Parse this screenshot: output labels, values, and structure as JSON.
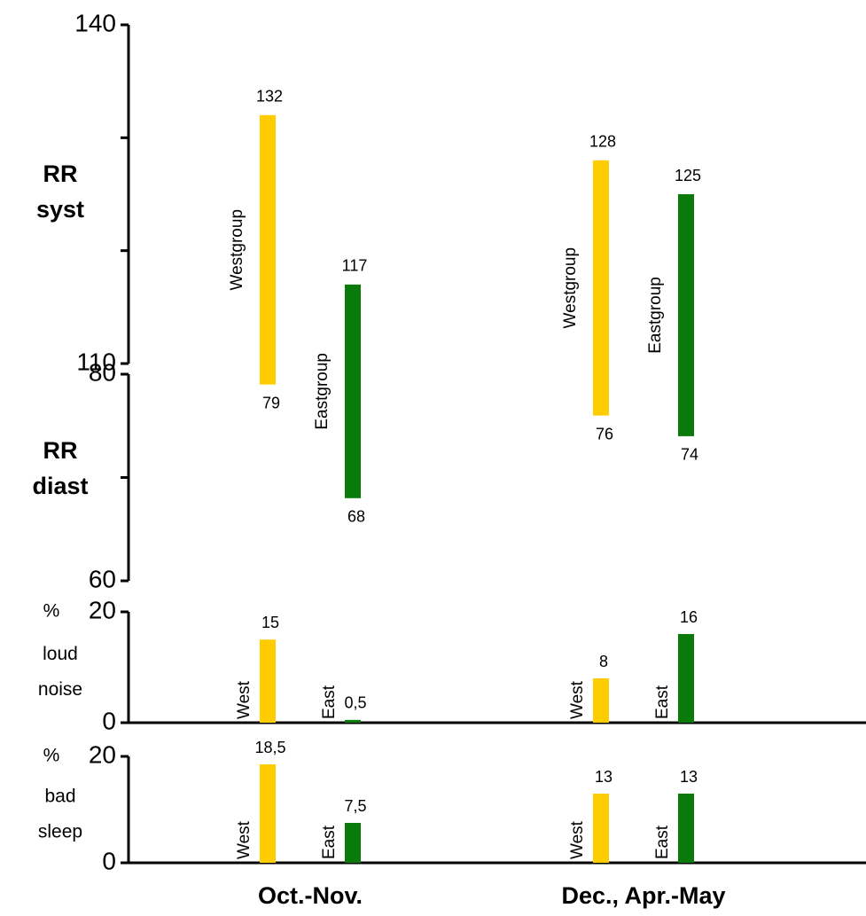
{
  "chart_data": [
    {
      "type": "range",
      "categories": [
        "Oct.-Nov.",
        "Dec., Apr.-May"
      ],
      "ylabel_syst": [
        "RR",
        "syst"
      ],
      "ylim_syst": [
        110,
        140
      ],
      "yticks_syst": [
        110,
        140
      ],
      "yminor_syst": [
        120,
        130
      ],
      "ylabel_diast": [
        "RR",
        "diast"
      ],
      "ylim_diast": [
        60,
        80
      ],
      "yticks_diast": [
        60,
        80
      ],
      "yminor_diast": [
        70
      ],
      "series": [
        {
          "name": "Westgroup",
          "color": "#ffcc00",
          "systolic": [
            132,
            128
          ],
          "diastolic": [
            79,
            76
          ]
        },
        {
          "name": "Eastgroup",
          "color": "#0a7a0a",
          "systolic": [
            117,
            125
          ],
          "diastolic": [
            68,
            74
          ]
        }
      ]
    },
    {
      "type": "bar",
      "ylabel_unit": "%",
      "ylabel": [
        "loud",
        "noise"
      ],
      "ylim": [
        0,
        20
      ],
      "yticks": [
        0,
        20
      ],
      "series": [
        {
          "name": "West",
          "color": "#ffcc00",
          "values": [
            15,
            8
          ]
        },
        {
          "name": "East",
          "color": "#0a7a0a",
          "values": [
            0.5,
            16
          ],
          "value_labels": [
            "0,5",
            "16"
          ]
        }
      ]
    },
    {
      "type": "bar",
      "ylabel_unit": "%",
      "ylabel": [
        "bad",
        "sleep"
      ],
      "ylim": [
        0,
        20
      ],
      "yticks": [
        0,
        20
      ],
      "series": [
        {
          "name": "West",
          "color": "#ffcc00",
          "values": [
            18.5,
            13
          ],
          "value_labels": [
            "18,5",
            "13"
          ]
        },
        {
          "name": "East",
          "color": "#0a7a0a",
          "values": [
            7.5,
            13
          ],
          "value_labels": [
            "7,5",
            "13"
          ]
        }
      ]
    }
  ]
}
